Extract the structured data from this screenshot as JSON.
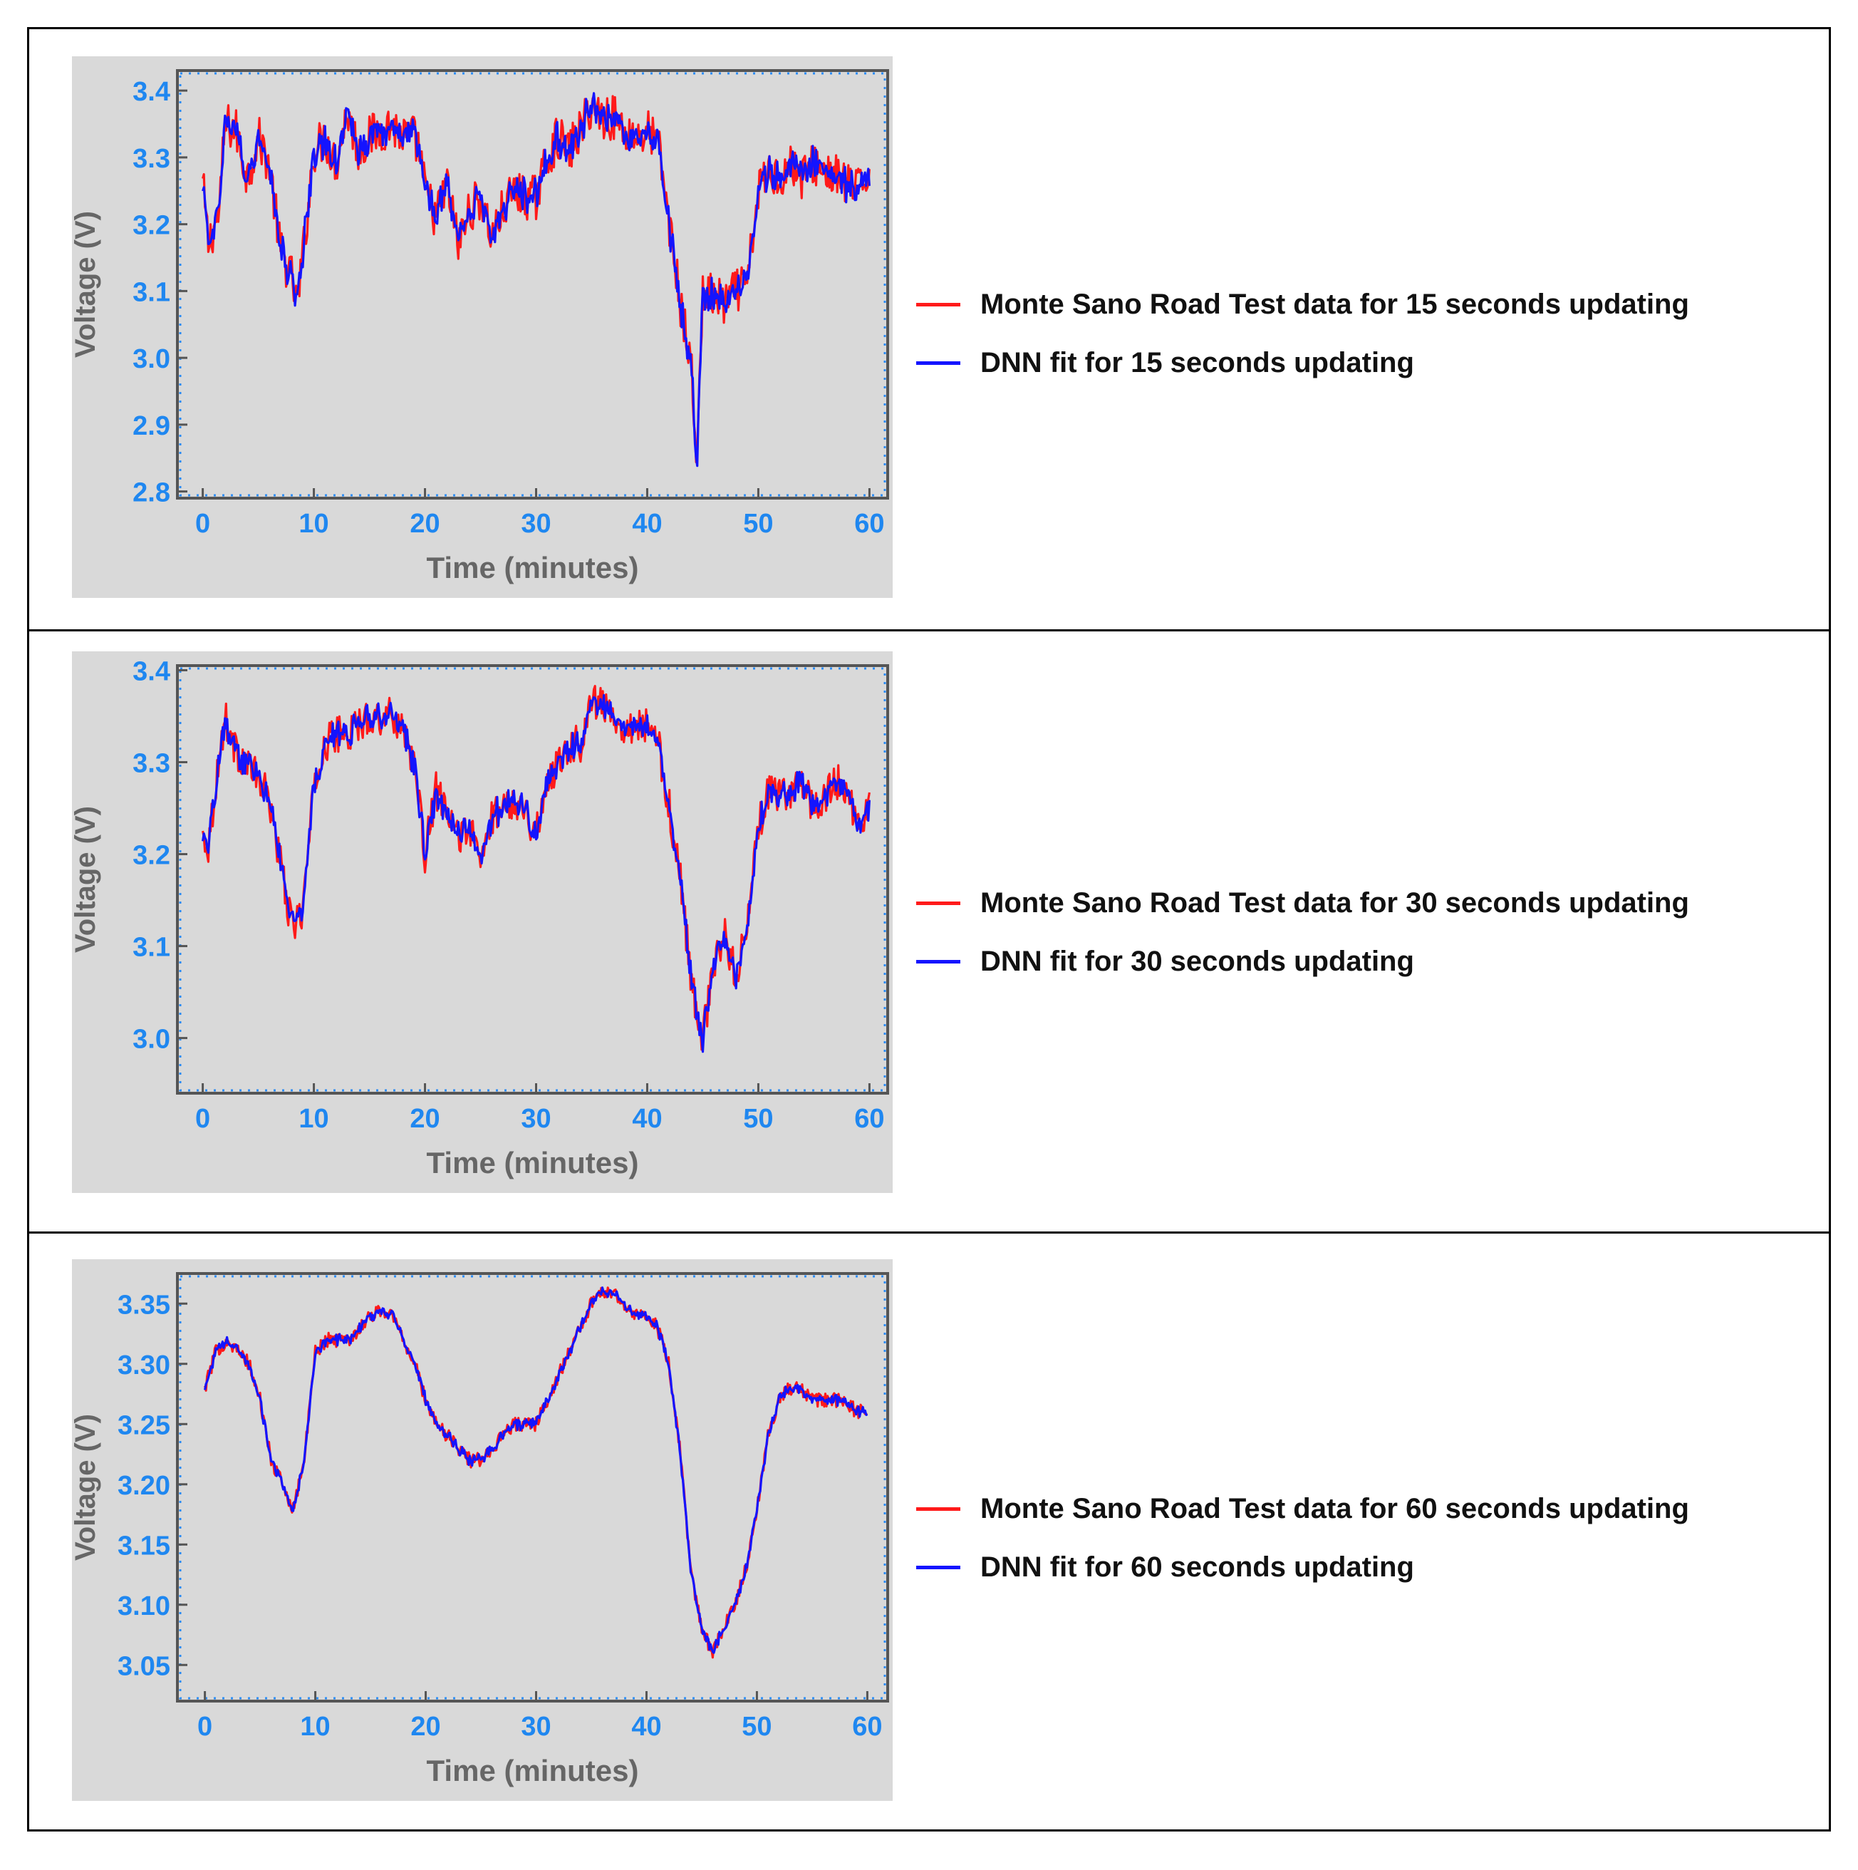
{
  "colors": {
    "plot_bg": "#d9d9d9",
    "frame": "#555555",
    "tick_text": "#1f87f0",
    "axis_label": "#666666",
    "data_series": "#ff1a1a",
    "fit_series": "#1414ff"
  },
  "chart_data": [
    {
      "type": "line",
      "xlabel": "Time (minutes)",
      "ylabel": "Voltage (V)",
      "xlim": [
        -1,
        61
      ],
      "ylim": [
        2.79,
        3.43
      ],
      "xticks": [
        "0",
        "10",
        "20",
        "30",
        "40",
        "50",
        "60"
      ],
      "yticks": [
        "2.8",
        "2.9",
        "3.0",
        "3.1",
        "3.2",
        "3.3",
        "3.4"
      ],
      "grid": false,
      "legend_position": "right",
      "noise": 0.034,
      "series": [
        {
          "name": "Monte Sano Road Test data for 15 seconds updating",
          "color": "#ff1a1a"
        },
        {
          "name": "DNN fit for 15 seconds updating",
          "color": "#1414ff"
        }
      ],
      "x": [
        0,
        0.5,
        1.5,
        2,
        3,
        4,
        5,
        6,
        7,
        8,
        8.5,
        9,
        10,
        11,
        12,
        13,
        14,
        15,
        16,
        17,
        18,
        19,
        19.5,
        20,
        21,
        22,
        23,
        24,
        25,
        26,
        27,
        28,
        29,
        30,
        31,
        32,
        33,
        34,
        35,
        36,
        37,
        38,
        39,
        40,
        41,
        42,
        43,
        44,
        44.5,
        45,
        46,
        47,
        48,
        49,
        50,
        51,
        52,
        53,
        54,
        55,
        56,
        57,
        58,
        59,
        60
      ],
      "y": [
        3.26,
        3.17,
        3.22,
        3.35,
        3.34,
        3.27,
        3.33,
        3.29,
        3.16,
        3.12,
        3.08,
        3.15,
        3.31,
        3.33,
        3.29,
        3.37,
        3.31,
        3.33,
        3.34,
        3.35,
        3.33,
        3.33,
        3.31,
        3.25,
        3.21,
        3.26,
        3.17,
        3.22,
        3.24,
        3.18,
        3.22,
        3.25,
        3.24,
        3.24,
        3.3,
        3.33,
        3.31,
        3.34,
        3.38,
        3.36,
        3.36,
        3.34,
        3.33,
        3.34,
        3.32,
        3.2,
        3.08,
        2.98,
        2.84,
        3.1,
        3.09,
        3.08,
        3.1,
        3.11,
        3.25,
        3.28,
        3.27,
        3.29,
        3.27,
        3.29,
        3.28,
        3.27,
        3.26,
        3.25,
        3.28
      ]
    },
    {
      "type": "line",
      "xlabel": "Time (minutes)",
      "ylabel": "Voltage (V)",
      "xlim": [
        -1,
        61
      ],
      "ylim": [
        2.94,
        3.405
      ],
      "xticks": [
        "0",
        "10",
        "20",
        "30",
        "40",
        "50",
        "60"
      ],
      "yticks": [
        "3.0",
        "3.1",
        "3.2",
        "3.3",
        "3.4"
      ],
      "grid": false,
      "legend_position": "right",
      "noise": 0.02,
      "series": [
        {
          "name": "Monte Sano Road Test data for 30 seconds updating",
          "color": "#ff1a1a"
        },
        {
          "name": "DNN fit for 30 seconds updating",
          "color": "#1414ff"
        }
      ],
      "x": [
        0,
        0.5,
        1,
        2,
        3,
        4,
        5,
        6,
        7,
        8,
        9,
        10,
        11,
        12,
        13,
        14,
        15,
        16,
        17,
        18,
        19,
        20,
        21,
        22,
        23,
        24,
        25,
        26,
        27,
        28,
        29,
        30,
        31,
        32,
        33,
        34,
        35,
        36,
        37,
        38,
        39,
        40,
        41,
        42,
        43,
        44,
        45,
        46,
        47,
        48,
        49,
        50,
        51,
        52,
        53,
        54,
        55,
        56,
        57,
        58,
        59,
        60
      ],
      "y": [
        3.22,
        3.21,
        3.26,
        3.35,
        3.31,
        3.3,
        3.28,
        3.26,
        3.19,
        3.12,
        3.14,
        3.27,
        3.32,
        3.33,
        3.33,
        3.34,
        3.35,
        3.35,
        3.35,
        3.34,
        3.3,
        3.2,
        3.27,
        3.24,
        3.22,
        3.23,
        3.19,
        3.24,
        3.25,
        3.26,
        3.25,
        3.22,
        3.28,
        3.3,
        3.32,
        3.32,
        3.37,
        3.36,
        3.35,
        3.34,
        3.34,
        3.34,
        3.32,
        3.25,
        3.17,
        3.06,
        3.0,
        3.08,
        3.11,
        3.07,
        3.12,
        3.23,
        3.27,
        3.26,
        3.27,
        3.28,
        3.25,
        3.26,
        3.28,
        3.27,
        3.23,
        3.25
      ]
    },
    {
      "type": "line",
      "xlabel": "Time (minutes)",
      "ylabel": "Voltage (V)",
      "xlim": [
        -1.2,
        61.2
      ],
      "ylim": [
        3.02,
        3.375
      ],
      "xticks": [
        "0",
        "10",
        "20",
        "30",
        "40",
        "50",
        "60"
      ],
      "yticks": [
        "3.05",
        "3.10",
        "3.15",
        "3.20",
        "3.25",
        "3.30",
        "3.35"
      ],
      "grid": false,
      "legend_position": "right",
      "noise": 0.006,
      "series": [
        {
          "name": "Monte Sano Road Test data for 60 seconds updating",
          "color": "#ff1a1a"
        },
        {
          "name": "DNN fit for 60 seconds updating",
          "color": "#1414ff"
        }
      ],
      "x": [
        0,
        1,
        2,
        3,
        4,
        5,
        6,
        7,
        8,
        9,
        10,
        11,
        12,
        13,
        14,
        15,
        16,
        17,
        18,
        19,
        20,
        21,
        22,
        23,
        24,
        25,
        26,
        27,
        28,
        29,
        30,
        31,
        32,
        33,
        34,
        35,
        36,
        37,
        38,
        39,
        40,
        41,
        42,
        43,
        44,
        45,
        46,
        47,
        48,
        49,
        50,
        51,
        52,
        53,
        54,
        55,
        56,
        57,
        58,
        59,
        60
      ],
      "y": [
        3.28,
        3.31,
        3.32,
        3.31,
        3.3,
        3.27,
        3.22,
        3.2,
        3.18,
        3.22,
        3.31,
        3.32,
        3.32,
        3.32,
        3.33,
        3.34,
        3.345,
        3.34,
        3.32,
        3.3,
        3.27,
        3.25,
        3.24,
        3.23,
        3.22,
        3.22,
        3.23,
        3.24,
        3.25,
        3.25,
        3.25,
        3.27,
        3.29,
        3.31,
        3.33,
        3.35,
        3.36,
        3.36,
        3.35,
        3.34,
        3.34,
        3.33,
        3.3,
        3.23,
        3.13,
        3.08,
        3.06,
        3.08,
        3.1,
        3.13,
        3.18,
        3.24,
        3.27,
        3.28,
        3.28,
        3.27,
        3.27,
        3.27,
        3.27,
        3.26,
        3.26
      ]
    }
  ]
}
